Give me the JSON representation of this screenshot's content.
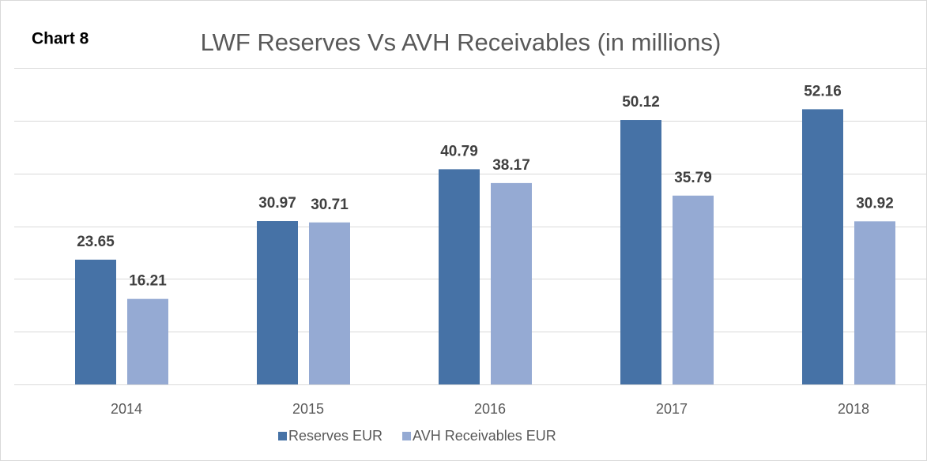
{
  "chart_data": {
    "type": "bar",
    "label": "Chart 8",
    "title": "LWF Reserves Vs AVH Receivables (in millions)",
    "categories": [
      "2014",
      "2015",
      "2016",
      "2017",
      "2018"
    ],
    "series": [
      {
        "name": "Reserves EUR",
        "color": "#4672a6",
        "values": [
          23.65,
          30.97,
          40.79,
          50.12,
          52.16
        ]
      },
      {
        "name": "AVH Receivables EUR",
        "color": "#95aad3",
        "values": [
          16.21,
          30.71,
          38.17,
          35.79,
          30.92
        ]
      }
    ],
    "ylim": [
      0,
      60
    ],
    "yticks": [
      0,
      10,
      20,
      30,
      40,
      50,
      60
    ],
    "grid": true,
    "legend": "bottom"
  }
}
